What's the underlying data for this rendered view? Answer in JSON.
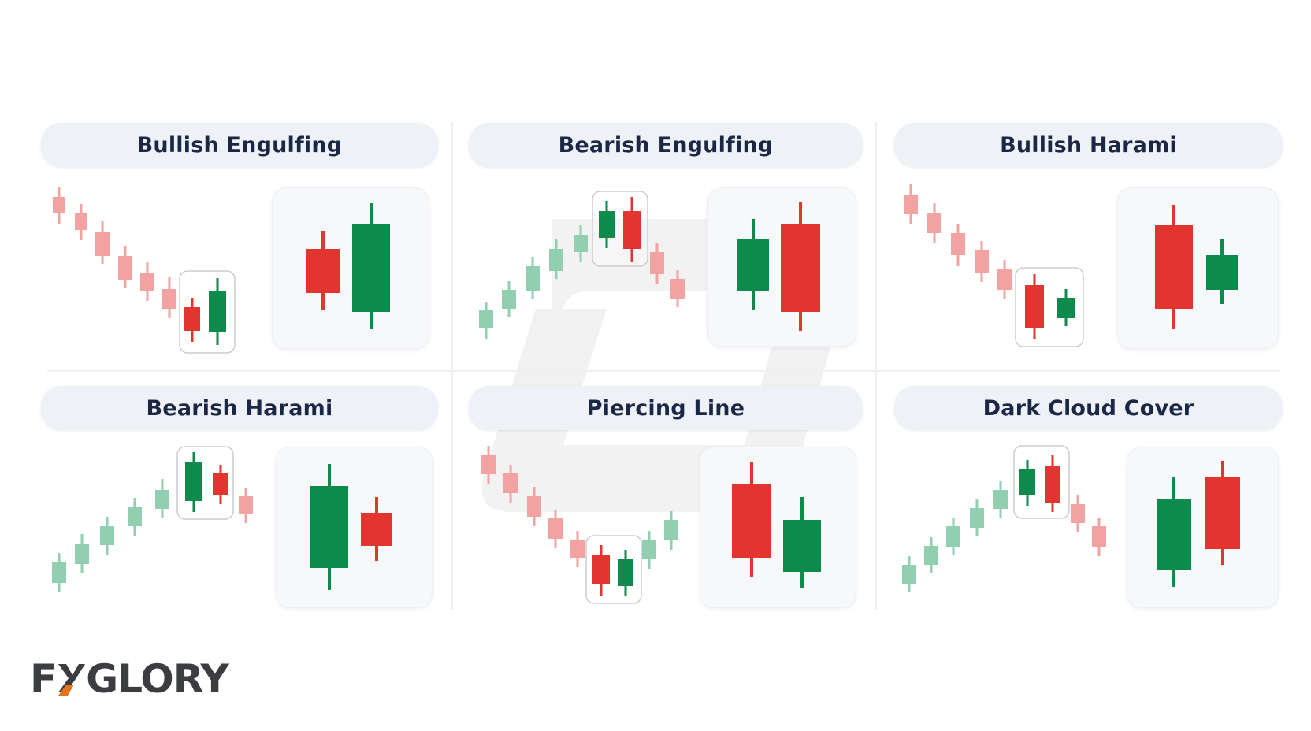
{
  "colors": {
    "bullish": "#0e8a4c",
    "bearish": "#e23530",
    "bullish_faded": "#92ceb0",
    "bearish_faded": "#f2a3a1",
    "title_text": "#1b2744",
    "logo_text": "#3c3d40",
    "logo_accent": "#e8731d"
  },
  "logo": {
    "text_before": "F",
    "accent_letter": "X",
    "text_after": "GLORY"
  },
  "patterns": [
    {
      "title": "Bullish Engulfing",
      "trend": "downtrend",
      "first_candle": "bearish-small",
      "second_candle": "bullish-large"
    },
    {
      "title": "Bearish Engulfing",
      "trend": "uptrend",
      "first_candle": "bullish-small",
      "second_candle": "bearish-large"
    },
    {
      "title": "Bullish Harami",
      "trend": "downtrend",
      "first_candle": "bearish-large",
      "second_candle": "bullish-small"
    },
    {
      "title": "Bearish Harami",
      "trend": "uptrend",
      "first_candle": "bullish-large",
      "second_candle": "bearish-small"
    },
    {
      "title": "Piercing Line",
      "trend": "downtrend",
      "first_candle": "bearish",
      "second_candle": "bullish"
    },
    {
      "title": "Dark Cloud Cover",
      "trend": "uptrend",
      "first_candle": "bullish",
      "second_candle": "bearish"
    }
  ],
  "icons": [
    "watermark-logo-icon",
    "logo-x-icon"
  ]
}
